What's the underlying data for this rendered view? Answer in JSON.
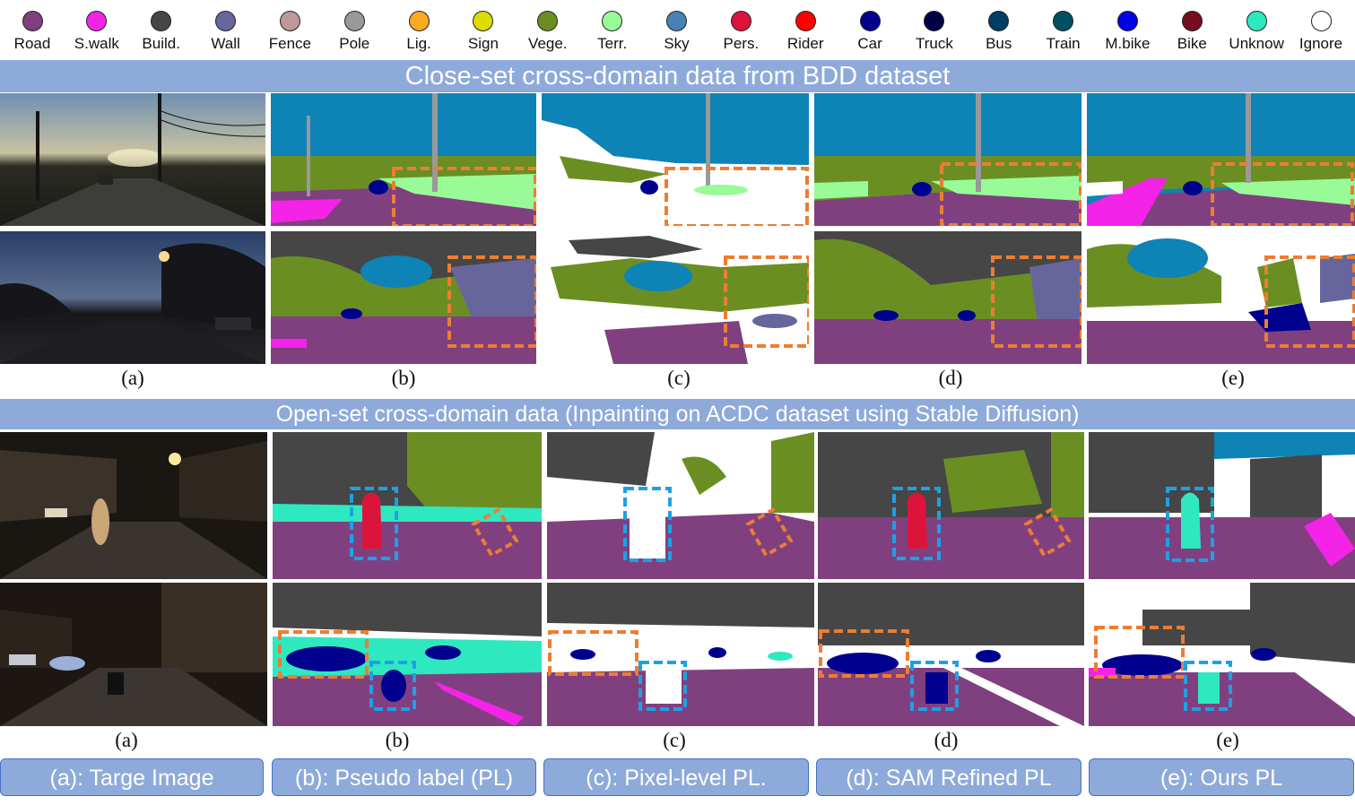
{
  "legend": [
    {
      "label": "Road",
      "color": "#804080"
    },
    {
      "label": "S.walk",
      "color": "#f423e8"
    },
    {
      "label": "Build.",
      "color": "#464646"
    },
    {
      "label": "Wall",
      "color": "#66669c"
    },
    {
      "label": "Fence",
      "color": "#be9999"
    },
    {
      "label": "Pole",
      "color": "#999999"
    },
    {
      "label": "Lig.",
      "color": "#faaa1e"
    },
    {
      "label": "Sign",
      "color": "#dcdc00"
    },
    {
      "label": "Vege.",
      "color": "#6b8e23"
    },
    {
      "label": "Terr.",
      "color": "#98fb98"
    },
    {
      "label": "Sky",
      "color": "#4682b4"
    },
    {
      "label": "Pers.",
      "color": "#dc143c"
    },
    {
      "label": "Rider",
      "color": "#ff0000"
    },
    {
      "label": "Car",
      "color": "#00008e"
    },
    {
      "label": "Truck",
      "color": "#000046"
    },
    {
      "label": "Bus",
      "color": "#003c64"
    },
    {
      "label": "Train",
      "color": "#005064"
    },
    {
      "label": "M.bike",
      "color": "#0000e6"
    },
    {
      "label": "Bike",
      "color": "#770b20"
    },
    {
      "label": "Unknow",
      "color": "#2ee8c0"
    },
    {
      "label": "Ignore",
      "color": "#ffffff"
    }
  ],
  "sections": {
    "closed_title": "Close-set cross-domain data from BDD dataset",
    "open_title": "Open-set cross-domain data (Inpainting on ACDC dataset using Stable Diffusion)"
  },
  "sublabels": [
    "(a)",
    "(b)",
    "(c)",
    "(d)",
    "(e)"
  ],
  "captions": {
    "a": "(a): Targe Image",
    "b": "(b): Pseudo label (PL)",
    "c": "(c): Pixel-level PL.",
    "d": "(d): SAM Refined PL",
    "e": "(e): Ours PL"
  },
  "colors": {
    "banner": "#8eaadb",
    "highlight_orange": "#ed7d31",
    "highlight_blue": "#1ea0e6"
  }
}
